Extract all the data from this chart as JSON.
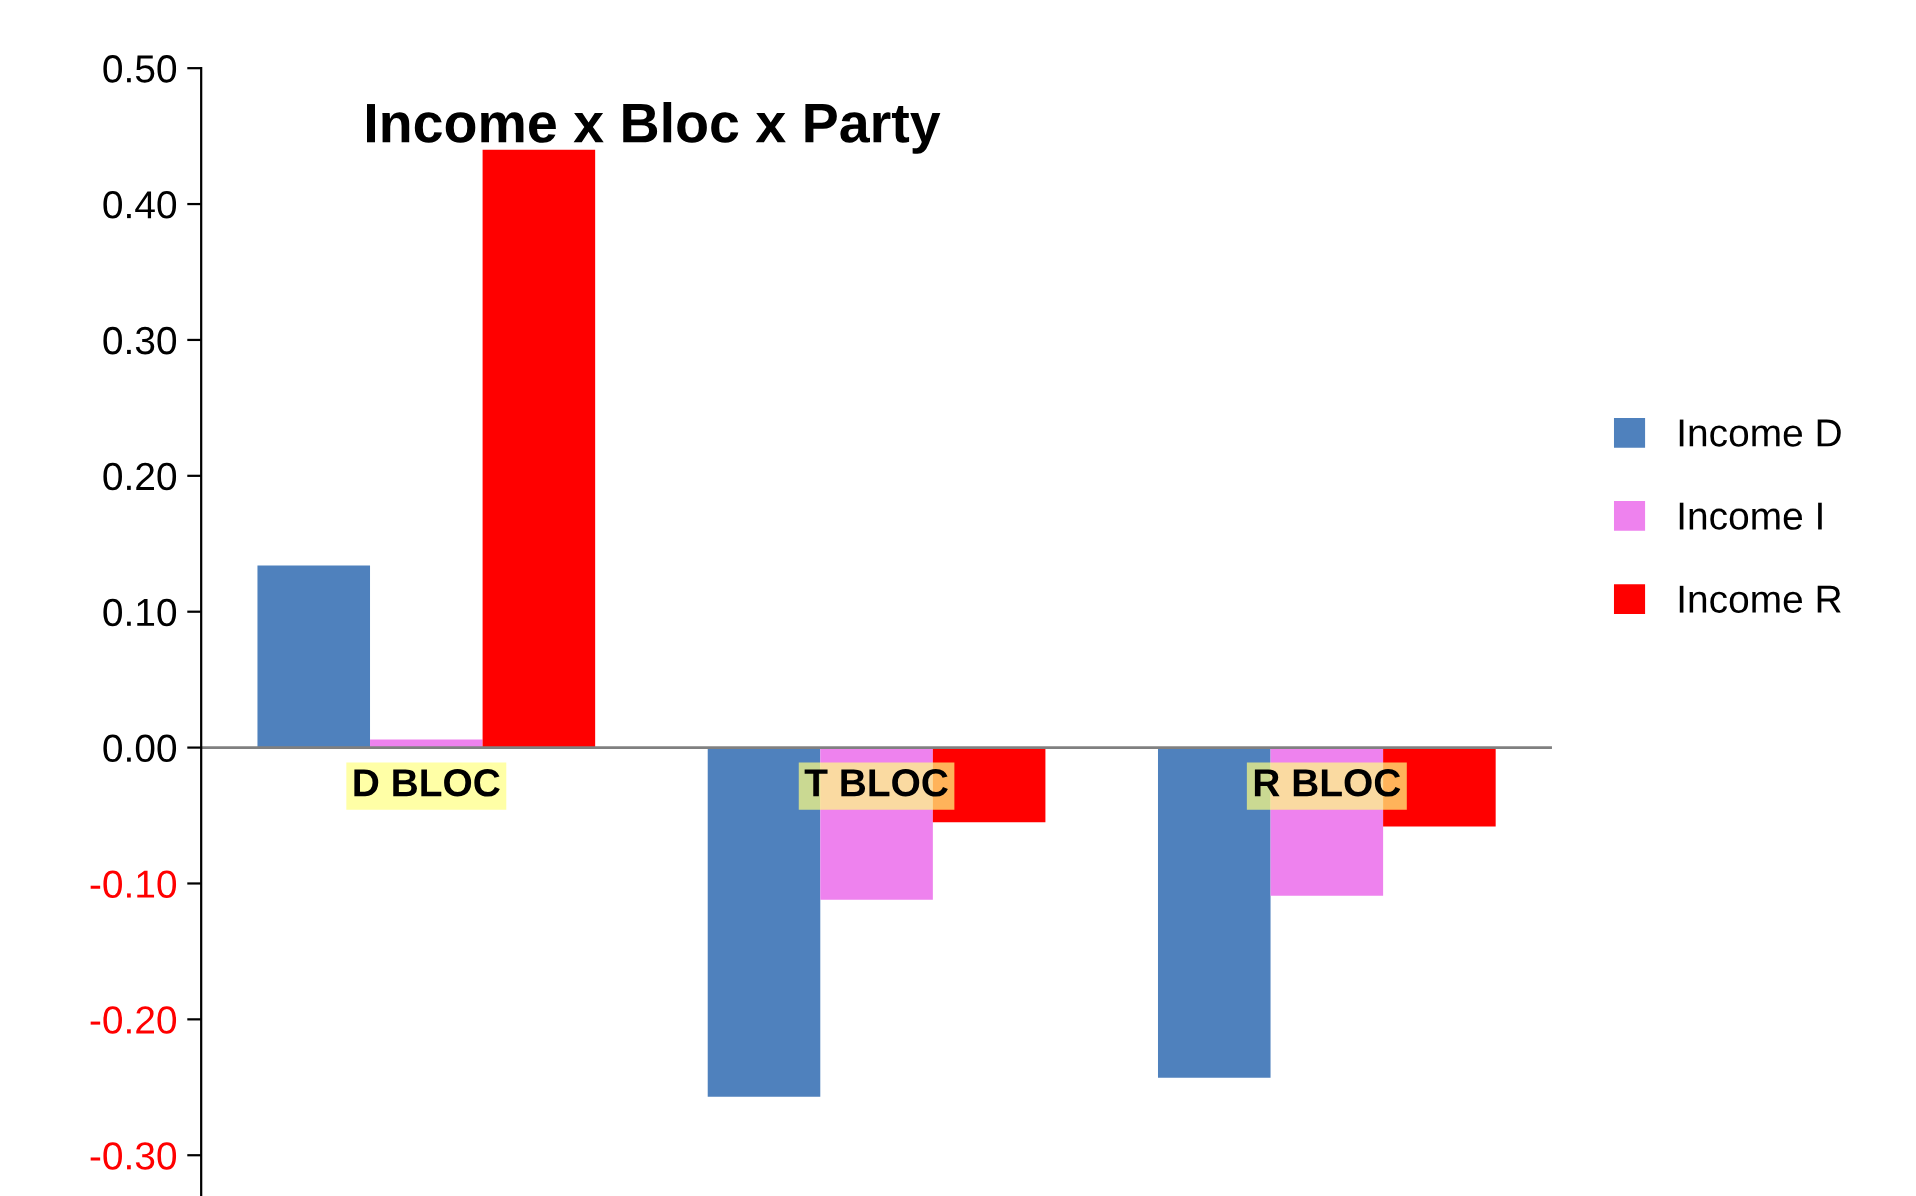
{
  "chart_data": {
    "type": "bar",
    "title": "Income x Bloc x Party",
    "categories": [
      "D BLOC",
      "T BLOC",
      "R BLOC"
    ],
    "series": [
      {
        "name": "Income D",
        "color": "#4f81bd",
        "values": [
          0.134,
          -0.257,
          -0.243
        ]
      },
      {
        "name": "Income I",
        "color": "#ee82ee",
        "values": [
          0.006,
          -0.112,
          -0.109
        ]
      },
      {
        "name": "Income R",
        "color": "#ff0000",
        "values": [
          0.44,
          -0.055,
          -0.058
        ]
      }
    ],
    "ylim": [
      -0.33,
      0.5
    ],
    "yticks": [
      {
        "value": -0.3,
        "label": "-0.30"
      },
      {
        "value": -0.2,
        "label": "-0.20"
      },
      {
        "value": -0.1,
        "label": "-0.10"
      },
      {
        "value": 0,
        "label": "0.00"
      },
      {
        "value": 0.1,
        "label": "0.10"
      },
      {
        "value": 0.2,
        "label": "0.20"
      },
      {
        "value": 0.3,
        "label": "0.30"
      },
      {
        "value": 0.4,
        "label": "0.40"
      },
      {
        "value": 0.5,
        "label": "0.50"
      }
    ],
    "grid": false,
    "legend": "right"
  }
}
